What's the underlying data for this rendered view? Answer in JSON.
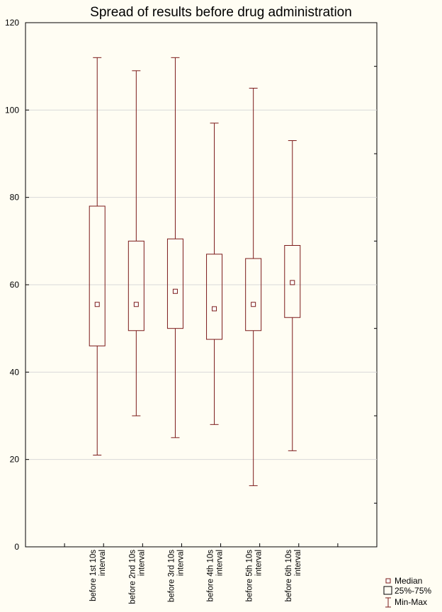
{
  "chart_data": {
    "type": "box",
    "title": "Spread of results before drug administration",
    "xlabel": "",
    "ylabel": "",
    "ylim": [
      0,
      120
    ],
    "yticks": [
      0,
      20,
      40,
      60,
      80,
      100,
      120
    ],
    "grid": true,
    "legend_position": "bottom-right",
    "categories": [
      [
        "before 1st 10s",
        "interval"
      ],
      [
        "before 2nd 10s",
        "interval"
      ],
      [
        "before 3rd 10s",
        "interval"
      ],
      [
        "before 4th 10s",
        "interval"
      ],
      [
        "before 5th 10s",
        "interval"
      ],
      [
        "before 6th 10s",
        "interval"
      ]
    ],
    "boxes": [
      {
        "min": 21,
        "q1": 46,
        "median": 55.5,
        "q3": 78,
        "max": 112
      },
      {
        "min": 30,
        "q1": 49.5,
        "median": 55.5,
        "q3": 70,
        "max": 109
      },
      {
        "min": 25,
        "q1": 50,
        "median": 58.5,
        "q3": 70.5,
        "max": 112
      },
      {
        "min": 28,
        "q1": 47.5,
        "median": 54.5,
        "q3": 67,
        "max": 97
      },
      {
        "min": 14,
        "q1": 49.5,
        "median": 55.5,
        "q3": 66,
        "max": 105
      },
      {
        "min": 22,
        "q1": 52.5,
        "median": 60.5,
        "q3": 69,
        "max": 93
      }
    ],
    "legend": [
      "Median",
      "25%-75%",
      "Min-Max"
    ],
    "colors": {
      "box": "#7b1a1a",
      "grid": "#d9d9d9",
      "background": "#fffdf3"
    }
  }
}
